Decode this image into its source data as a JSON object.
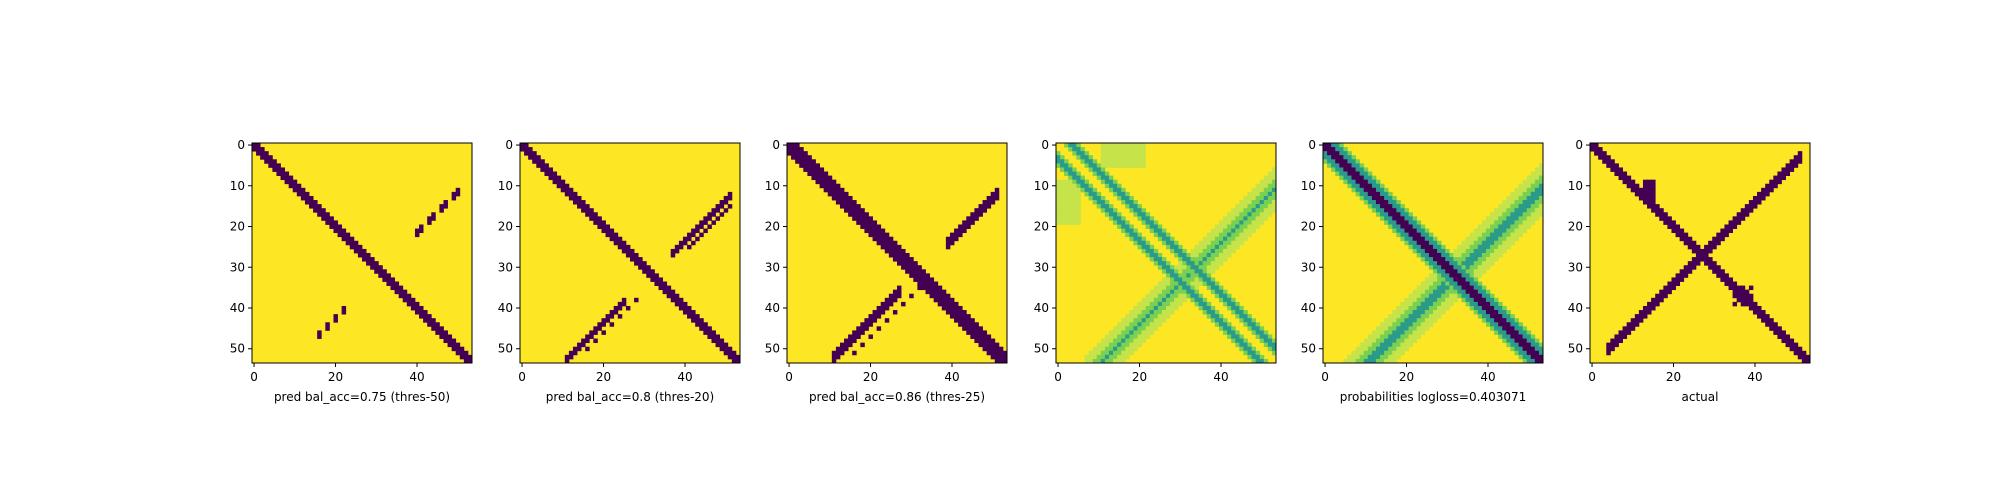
{
  "colors": {
    "background_dark": "#440154",
    "background_light": "#fde725",
    "mid_teal": "#2a9a8b",
    "mid_green": "#7ad151",
    "light_green": "#c6e34a",
    "axis": "#000000"
  },
  "chart_data": [
    {
      "type": "heatmap",
      "title": "",
      "xlabel": "pred bal_acc=0.75 (thres-50)",
      "ylabel": "",
      "grid_size": 54,
      "xticks": [
        0,
        20,
        40
      ],
      "yticks": [
        0,
        10,
        20,
        30,
        40,
        50
      ],
      "pattern": "thresholded prediction",
      "colormap": "viridis"
    },
    {
      "type": "heatmap",
      "title": "",
      "xlabel": "pred bal_acc=0.8 (thres-20)",
      "ylabel": "",
      "grid_size": 54,
      "xticks": [
        0,
        20,
        40
      ],
      "yticks": [
        0,
        10,
        20,
        30,
        40,
        50
      ],
      "pattern": "thresholded prediction",
      "colormap": "viridis"
    },
    {
      "type": "heatmap",
      "title": "",
      "xlabel": "pred bal_acc=0.86 (thres-25)",
      "ylabel": "",
      "grid_size": 54,
      "xticks": [
        0,
        20,
        40
      ],
      "yticks": [
        0,
        10,
        20,
        30,
        40,
        50
      ],
      "pattern": "thresholded prediction",
      "colormap": "viridis"
    },
    {
      "type": "heatmap",
      "title": "",
      "xlabel": "",
      "ylabel": "",
      "grid_size": 54,
      "xticks": [
        0,
        20,
        40
      ],
      "yticks": [
        0,
        10,
        20,
        30,
        40,
        50
      ],
      "pattern": "continuous probabilities (thin diagonals)",
      "colormap": "viridis"
    },
    {
      "type": "heatmap",
      "title": "",
      "xlabel": "probabilities logloss=0.403071",
      "ylabel": "",
      "grid_size": 54,
      "xticks": [
        0,
        20,
        40
      ],
      "yticks": [
        0,
        10,
        20,
        30,
        40,
        50
      ],
      "pattern": "continuous probabilities (main diagonal)",
      "colormap": "viridis"
    },
    {
      "type": "heatmap",
      "title": "",
      "xlabel": "actual",
      "ylabel": "",
      "grid_size": 54,
      "xticks": [
        0,
        20,
        40
      ],
      "yticks": [
        0,
        10,
        20,
        30,
        40,
        50
      ],
      "pattern": "ground truth contact map",
      "colormap": "viridis"
    }
  ]
}
